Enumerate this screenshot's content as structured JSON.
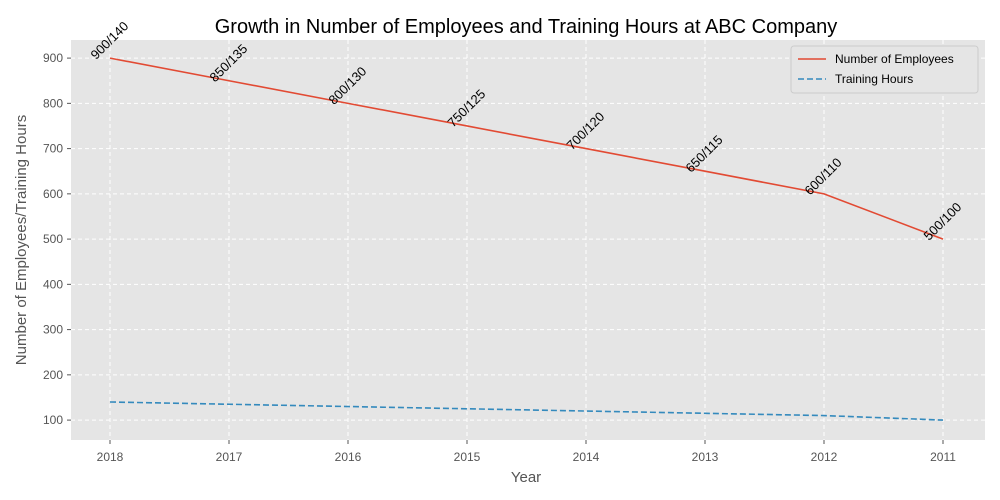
{
  "chart_data": {
    "type": "line",
    "title": "Growth in Number of Employees and Training Hours at ABC Company",
    "xlabel": "Year",
    "ylabel": "Number of Employees/Training Hours",
    "categories": [
      "2018",
      "2017",
      "2016",
      "2015",
      "2014",
      "2013",
      "2012",
      "2011"
    ],
    "series": [
      {
        "name": "Number of Employees",
        "values": [
          900,
          850,
          800,
          750,
          700,
          650,
          600,
          500
        ],
        "color": "#e24a33",
        "style": "solid"
      },
      {
        "name": "Training Hours",
        "values": [
          140,
          135,
          130,
          125,
          120,
          115,
          110,
          100
        ],
        "color": "#348abd",
        "style": "dashed"
      }
    ],
    "data_labels": [
      "900/140",
      "850/135",
      "800/130",
      "750/125",
      "700/120",
      "650/115",
      "600/110",
      "500/100"
    ],
    "yticks": [
      100,
      200,
      300,
      400,
      500,
      600,
      700,
      800,
      900
    ],
    "ylim": [
      56,
      940
    ],
    "grid": true,
    "legend_position": "top-right",
    "background_color": "#e5e5e5",
    "grid_color": "#ffffff"
  }
}
